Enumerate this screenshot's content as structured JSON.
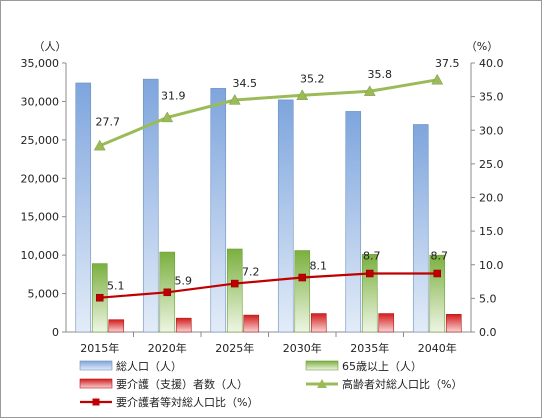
{
  "chart_data": {
    "type": "bar",
    "categories": [
      "2015年",
      "2020年",
      "2025年",
      "2030年",
      "2035年",
      "2040年"
    ],
    "left_axis": {
      "unit_label": "（人）",
      "min": 0,
      "max": 35000,
      "step": 5000,
      "tick_labels": [
        "0",
        "5,000",
        "10,000",
        "15,000",
        "20,000",
        "25,000",
        "30,000",
        "35,000"
      ]
    },
    "right_axis": {
      "unit_label": "（%）",
      "min": 0,
      "max": 40,
      "step": 5,
      "tick_labels": [
        "0.0",
        "5.0",
        "10.0",
        "15.0",
        "20.0",
        "25.0",
        "30.0",
        "35.0",
        "40.0"
      ]
    },
    "series": [
      {
        "name": "総人口（人）",
        "type": "bar",
        "axis": "left",
        "color": "#7aa6dc",
        "values": [
          32400,
          32900,
          31700,
          30200,
          28700,
          27000
        ]
      },
      {
        "name": "65歳以上（人）",
        "type": "bar",
        "axis": "left",
        "color": "#8cbc4c",
        "values": [
          8900,
          10400,
          10800,
          10600,
          10100,
          10000
        ]
      },
      {
        "name": "要介護（支援）者数（人）",
        "type": "bar",
        "axis": "left",
        "color": "#d81e1e",
        "values": [
          1600,
          1800,
          2200,
          2400,
          2400,
          2300
        ]
      },
      {
        "name": "高齢者対総人口比（%）",
        "type": "line",
        "axis": "right",
        "color": "#9bbb59",
        "values": [
          27.7,
          31.9,
          34.5,
          35.2,
          35.8,
          37.5
        ],
        "data_labels": [
          "27.7",
          "31.9",
          "34.5",
          "35.2",
          "35.8",
          "37.5"
        ]
      },
      {
        "name": "要介護者等対総人口比（%）",
        "type": "line",
        "axis": "right",
        "color": "#c00000",
        "values": [
          5.1,
          5.9,
          7.2,
          8.1,
          8.7,
          8.7
        ],
        "data_labels": [
          "5.1",
          "5.9",
          "7.2",
          "8.1",
          "8.7",
          "8.7"
        ]
      }
    ],
    "grid": false,
    "legend_position": "bottom"
  }
}
